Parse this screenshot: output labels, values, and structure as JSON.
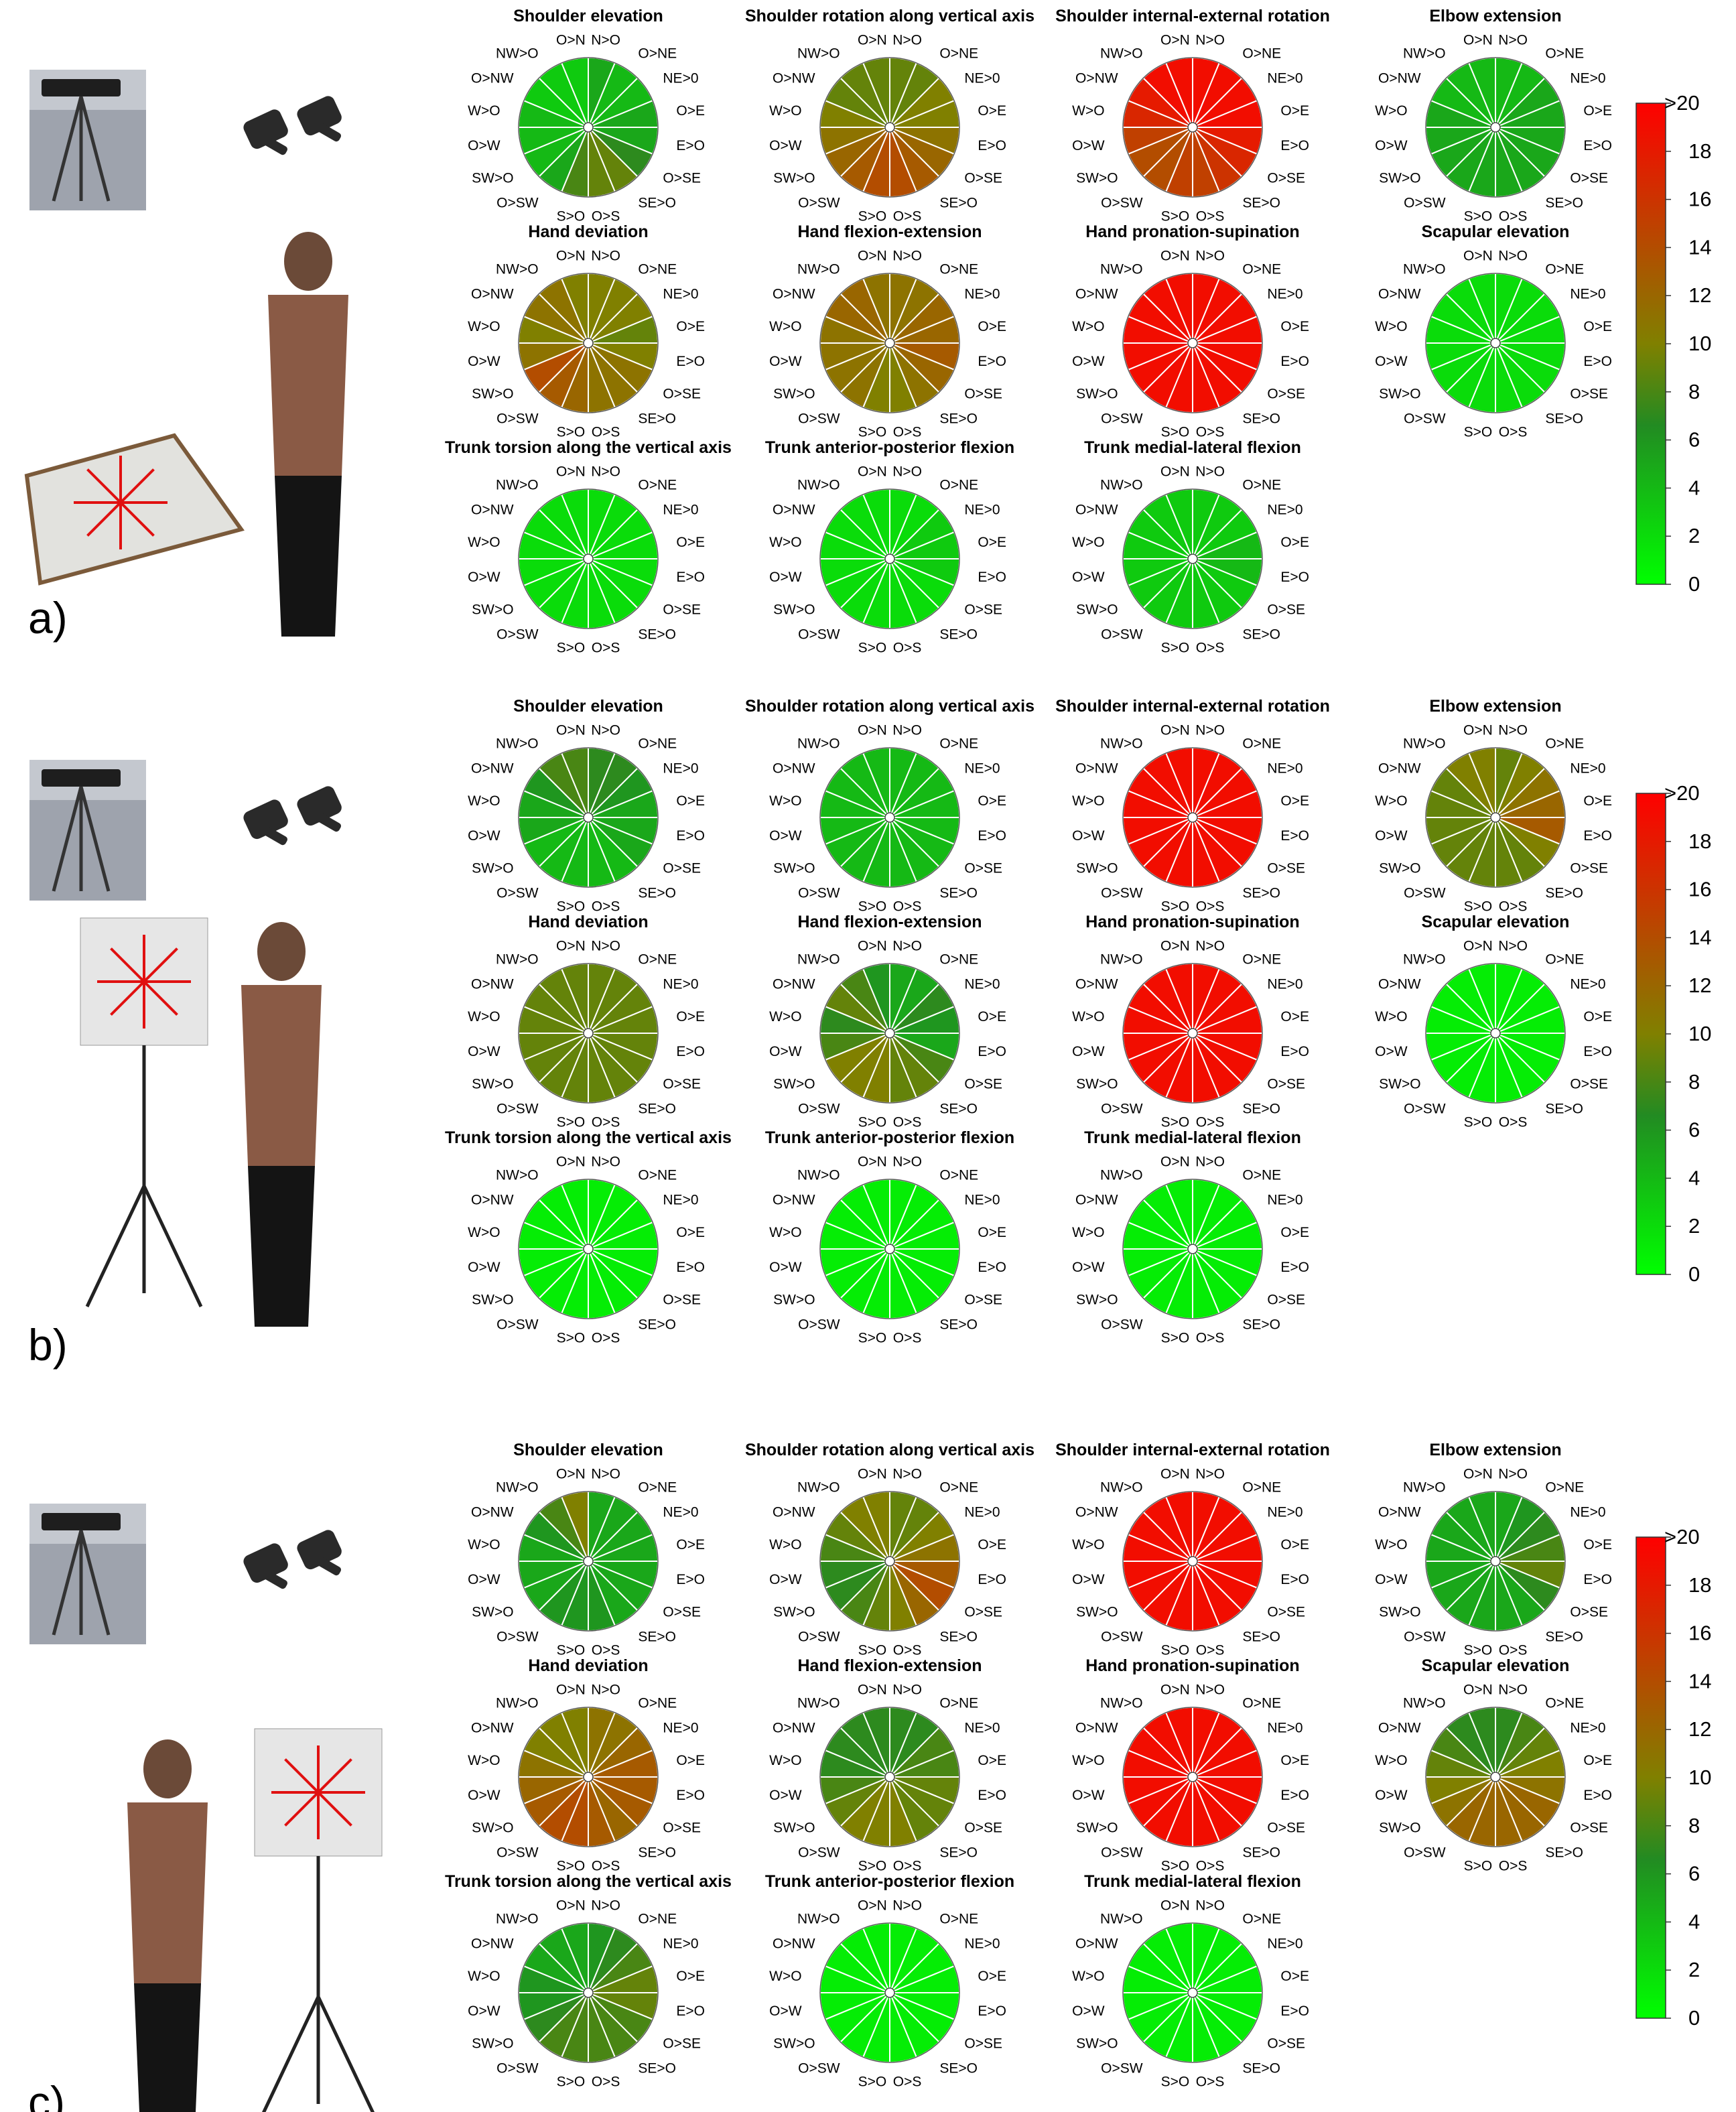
{
  "figure": {
    "panel_labels": [
      "a)",
      "b)",
      "c)"
    ],
    "direction_labels": [
      "N>O",
      "O>NE",
      "NE>0",
      "O>E",
      "E>O",
      "O>SE",
      "SE>O",
      "O>S",
      "S>O",
      "O>SW",
      "SW>O",
      "O>W",
      "W>O",
      "O>NW",
      "NW>O",
      "O>N"
    ]
  },
  "colorbar": {
    "tick_labels": [
      "0",
      "2",
      "4",
      "6",
      "8",
      "10",
      "12",
      "14",
      "16",
      "18",
      ">20"
    ],
    "range": [
      0,
      20
    ],
    "colors": [
      "#00ff00",
      "#228b22",
      "#808000",
      "#ff0000"
    ]
  },
  "chart_data": [
    {
      "panel": "a)",
      "type": "polar-sector-heatmap",
      "charts": [
        {
          "title": "Shoulder elevation",
          "values": [
            5,
            4,
            4,
            5,
            5,
            7,
            9,
            9,
            8,
            5,
            4,
            4,
            4,
            3,
            3,
            3
          ]
        },
        {
          "title": "Shoulder rotation along vertical axis",
          "values": [
            9,
            9,
            10,
            10,
            11,
            12,
            13,
            14,
            14,
            13,
            12,
            11,
            10,
            9,
            9,
            9
          ]
        },
        {
          "title": "Shoulder internal-external rotation",
          "values": [
            19,
            19,
            19,
            19,
            18,
            17,
            16,
            15,
            15,
            14,
            14,
            15,
            17,
            18,
            19,
            19
          ]
        },
        {
          "title": "Elbow extension",
          "values": [
            4,
            4,
            5,
            5,
            5,
            5,
            5,
            5,
            5,
            5,
            5,
            5,
            5,
            4,
            4,
            4
          ]
        },
        {
          "title": "Hand deviation",
          "values": [
            10,
            10,
            10,
            9,
            10,
            11,
            11,
            11,
            12,
            13,
            14,
            11,
            10,
            11,
            11,
            10
          ]
        },
        {
          "title": "Hand flexion-extension",
          "values": [
            11,
            11,
            12,
            12,
            13,
            12,
            11,
            10,
            10,
            11,
            11,
            11,
            11,
            12,
            12,
            11
          ]
        },
        {
          "title": "Hand pronation-supination",
          "values": [
            19,
            19,
            19,
            19,
            19,
            19,
            19,
            19,
            19,
            19,
            19,
            19,
            19,
            19,
            19,
            19
          ]
        },
        {
          "title": "Scapular elevation",
          "values": [
            2,
            2,
            2,
            2,
            2,
            2,
            2,
            2,
            2,
            2,
            2,
            2,
            2,
            2,
            2,
            2
          ]
        },
        {
          "title": "Trunk torsion along the vertical axis",
          "values": [
            2,
            2,
            2,
            2,
            2,
            2,
            2,
            2,
            2,
            2,
            2,
            2,
            2,
            2,
            2,
            2
          ]
        },
        {
          "title": "Trunk anterior-posterior flexion",
          "values": [
            2,
            2,
            3,
            3,
            3,
            2,
            2,
            2,
            2,
            2,
            2,
            2,
            2,
            2,
            2,
            2
          ]
        },
        {
          "title": "Trunk medial-lateral flexion",
          "values": [
            3,
            3,
            3,
            4,
            4,
            3,
            3,
            3,
            3,
            3,
            3,
            3,
            3,
            3,
            3,
            3
          ]
        }
      ]
    },
    {
      "panel": "b)",
      "type": "polar-sector-heatmap",
      "charts": [
        {
          "title": "Shoulder elevation",
          "values": [
            7,
            7,
            6,
            5,
            5,
            5,
            4,
            4,
            4,
            4,
            4,
            5,
            5,
            6,
            8,
            8
          ]
        },
        {
          "title": "Shoulder rotation along vertical axis",
          "values": [
            4,
            4,
            4,
            4,
            4,
            4,
            4,
            4,
            4,
            4,
            4,
            4,
            4,
            4,
            4,
            4
          ]
        },
        {
          "title": "Shoulder internal-external rotation",
          "values": [
            19,
            19,
            19,
            19,
            19,
            19,
            19,
            19,
            19,
            19,
            19,
            19,
            19,
            19,
            19,
            19
          ]
        },
        {
          "title": "Elbow extension",
          "values": [
            9,
            10,
            11,
            12,
            13,
            10,
            9,
            9,
            9,
            9,
            9,
            9,
            9,
            9,
            10,
            10
          ]
        },
        {
          "title": "Hand deviation",
          "values": [
            9,
            9,
            9,
            9,
            9,
            9,
            9,
            9,
            9,
            9,
            9,
            9,
            9,
            9,
            9,
            9
          ]
        },
        {
          "title": "Hand flexion-extension",
          "values": [
            5,
            5,
            7,
            6,
            5,
            8,
            9,
            9,
            10,
            10,
            10,
            8,
            7,
            9,
            8,
            6
          ]
        },
        {
          "title": "Hand pronation-supination",
          "values": [
            19,
            19,
            19,
            19,
            19,
            19,
            19,
            19,
            19,
            19,
            19,
            19,
            19,
            19,
            19,
            19
          ]
        },
        {
          "title": "Scapular elevation",
          "values": [
            1,
            1,
            1,
            1,
            1,
            1,
            1,
            1,
            1,
            1,
            1,
            1,
            1,
            1,
            1,
            1
          ]
        },
        {
          "title": "Trunk torsion along the vertical axis",
          "values": [
            1,
            1,
            1,
            1,
            1,
            1,
            1,
            1,
            1,
            1,
            1,
            1,
            1,
            1,
            1,
            1
          ]
        },
        {
          "title": "Trunk anterior-posterior flexion",
          "values": [
            1,
            1,
            1,
            1,
            1,
            1,
            1,
            1,
            1,
            1,
            1,
            1,
            1,
            1,
            1,
            1
          ]
        },
        {
          "title": "Trunk medial-lateral flexion",
          "values": [
            1,
            1,
            1,
            1,
            1,
            1,
            1,
            1,
            1,
            1,
            1,
            1,
            1,
            1,
            1,
            1
          ]
        }
      ]
    },
    {
      "panel": "c)",
      "type": "polar-sector-heatmap",
      "charts": [
        {
          "title": "Shoulder elevation",
          "values": [
            5,
            5,
            5,
            5,
            5,
            5,
            5,
            6,
            6,
            6,
            5,
            5,
            5,
            6,
            8,
            10
          ]
        },
        {
          "title": "Shoulder rotation along vertical axis",
          "values": [
            9,
            9,
            10,
            11,
            13,
            14,
            12,
            10,
            9,
            8,
            7,
            7,
            8,
            9,
            10,
            10
          ]
        },
        {
          "title": "Shoulder internal-external rotation",
          "values": [
            19,
            19,
            19,
            19,
            19,
            19,
            19,
            19,
            19,
            19,
            19,
            19,
            19,
            19,
            19,
            19
          ]
        },
        {
          "title": "Elbow extension",
          "values": [
            5,
            6,
            7,
            8,
            9,
            7,
            5,
            5,
            5,
            5,
            5,
            5,
            5,
            5,
            5,
            5
          ]
        },
        {
          "title": "Hand deviation",
          "values": [
            11,
            11,
            12,
            13,
            13,
            13,
            12,
            13,
            14,
            14,
            13,
            12,
            11,
            10,
            10,
            10
          ]
        },
        {
          "title": "Hand flexion-extension",
          "values": [
            7,
            7,
            8,
            8,
            9,
            9,
            9,
            10,
            10,
            10,
            9,
            8,
            7,
            7,
            7,
            7
          ]
        },
        {
          "title": "Hand pronation-supination",
          "values": [
            19,
            19,
            19,
            19,
            19,
            19,
            19,
            19,
            19,
            19,
            19,
            19,
            19,
            19,
            19,
            19
          ]
        },
        {
          "title": "Scapular elevation",
          "values": [
            7,
            8,
            9,
            10,
            11,
            12,
            12,
            12,
            12,
            12,
            11,
            10,
            9,
            8,
            7,
            7
          ]
        },
        {
          "title": "Trunk torsion along the vertical axis",
          "values": [
            6,
            7,
            8,
            9,
            9,
            8,
            8,
            8,
            8,
            8,
            7,
            6,
            6,
            5,
            5,
            5
          ]
        },
        {
          "title": "Trunk anterior-posterior flexion",
          "values": [
            1,
            1,
            1,
            1,
            1,
            1,
            1,
            1,
            1,
            1,
            1,
            1,
            1,
            1,
            1,
            1
          ]
        },
        {
          "title": "Trunk medial-lateral flexion",
          "values": [
            1,
            1,
            1,
            1,
            1,
            1,
            1,
            1,
            1,
            1,
            1,
            1,
            1,
            1,
            1,
            1
          ]
        }
      ]
    }
  ]
}
